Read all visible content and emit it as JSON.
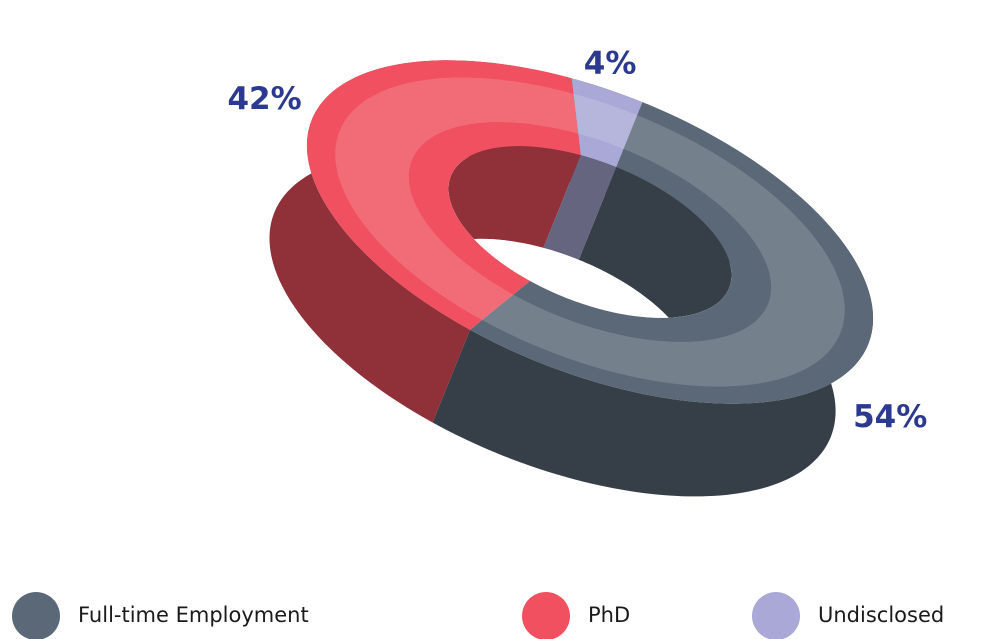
{
  "chart_data": {
    "type": "pie",
    "categories": [
      "Full-time Employment",
      "PhD",
      "Undisclosed"
    ],
    "values": [
      54,
      42,
      4
    ],
    "value_labels": [
      "54%",
      "42%",
      "4%"
    ],
    "colors": [
      "#5a6877",
      "#f0505f",
      "#a9a8d6"
    ]
  }
}
